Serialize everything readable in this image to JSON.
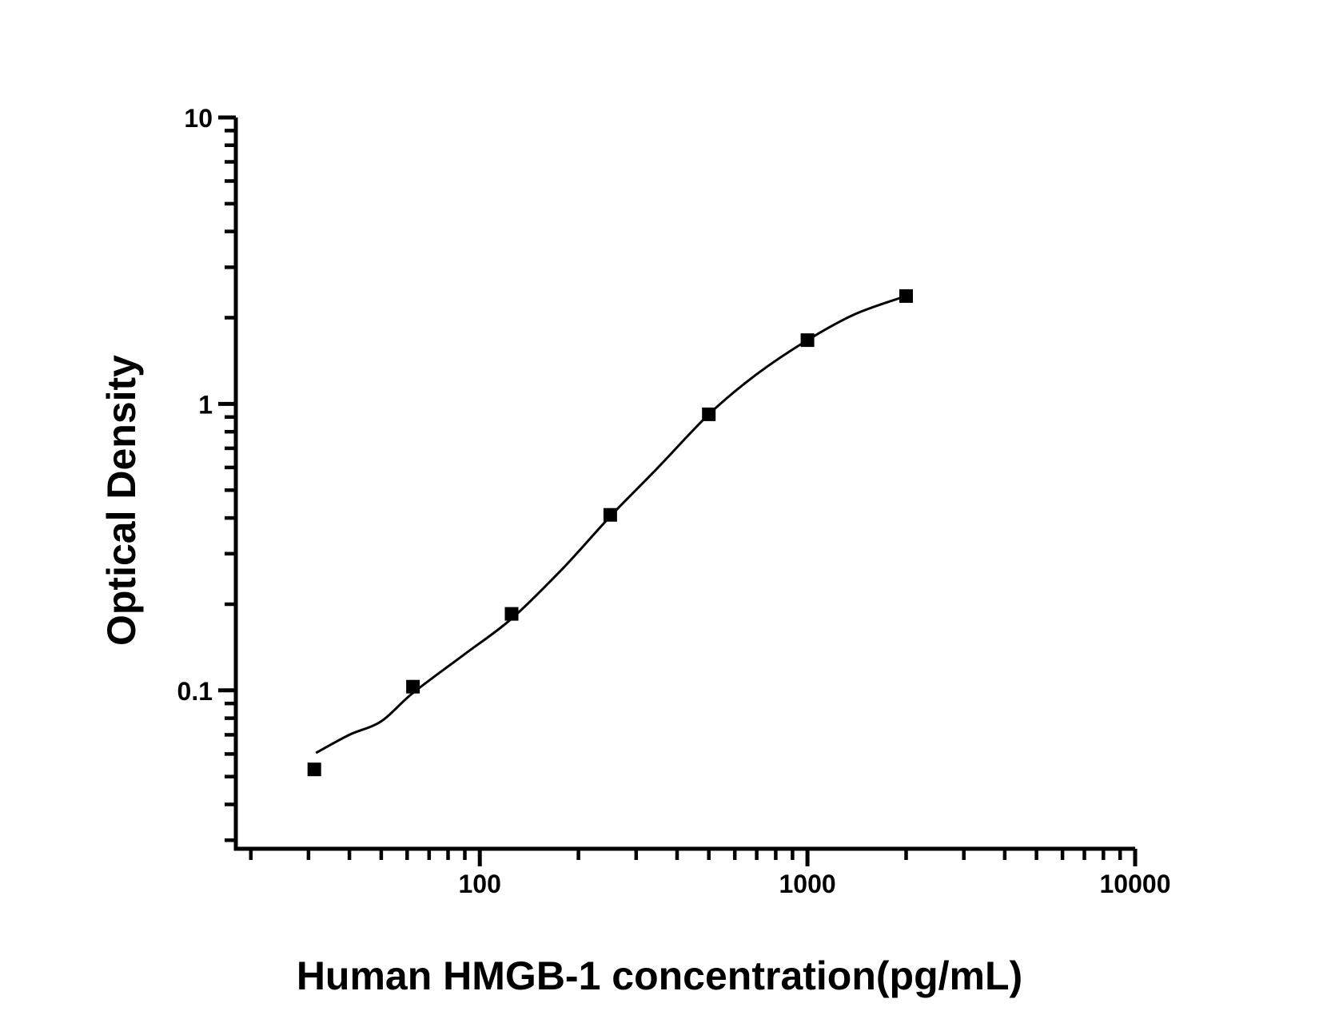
{
  "figure": {
    "background_color": "#ffffff",
    "ink_color": "#000000"
  },
  "chart_data": {
    "type": "scatter",
    "title": "",
    "xlabel": "Human HMGB-1 concentration(pg/mL)",
    "ylabel": "Optical Density",
    "x_scale": "log",
    "y_scale": "log",
    "xlim": [
      18,
      10000
    ],
    "ylim": [
      0.028,
      10
    ],
    "grid": false,
    "legend": "none",
    "marker": "filled-square",
    "marker_size_px": 17,
    "x_ticks": [
      {
        "value": 100,
        "label": "100"
      },
      {
        "value": 1000,
        "label": "1000"
      },
      {
        "value": 10000,
        "label": "10000"
      }
    ],
    "y_ticks": [
      {
        "value": 0.1,
        "label": "0.1"
      },
      {
        "value": 1,
        "label": "1"
      },
      {
        "value": 10,
        "label": "10"
      }
    ],
    "minor_tick_multiples_per_decade": [
      2,
      3,
      4,
      5,
      6,
      7,
      8,
      9
    ],
    "series": [
      {
        "name": "standard-points",
        "x": [
          31.25,
          62.5,
          125,
          250,
          500,
          1000,
          2000
        ],
        "y": [
          0.053,
          0.103,
          0.185,
          0.41,
          0.92,
          1.67,
          2.38
        ]
      }
    ],
    "fit_curve": {
      "name": "4pl-fit-line",
      "x": [
        31.6,
        40,
        50,
        62.5,
        90,
        125,
        180,
        250,
        350,
        500,
        700,
        1000,
        1400,
        2000
      ],
      "y": [
        0.0605,
        0.07,
        0.078,
        0.098,
        0.134,
        0.178,
        0.268,
        0.405,
        0.6,
        0.92,
        1.27,
        1.67,
        2.06,
        2.38
      ]
    }
  }
}
